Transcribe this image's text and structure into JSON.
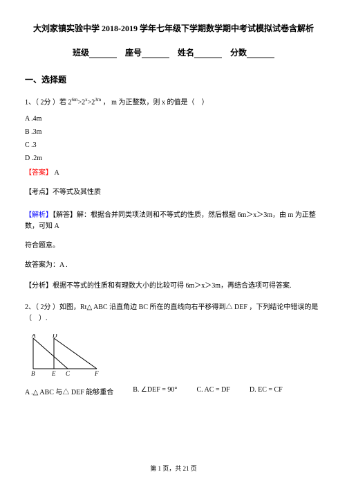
{
  "doc": {
    "title": "大刘家镇实验中学 2018-2019 学年七年级下学期数学期中考试模拟试卷含解析",
    "blanks": {
      "class": "班级",
      "seat": "座号",
      "name": "姓名",
      "score": "分数"
    },
    "section1": "一、选择题",
    "q1": {
      "stem_a": "1、（ 2分 ）若 2",
      "exp1": "6m",
      "stem_b": ">2",
      "exp2": "x",
      "stem_c": ">2",
      "exp3": "3m",
      "stem_d": " ， m 为正整数，则 x 的值是（　）",
      "optA": "A .4m",
      "optB": "B .3m",
      "optC": "C .3",
      "optD": "D .2m",
      "ans_label": "【答案】",
      "ans": " A",
      "kaodian": "【考点】不等式及其性质",
      "jiexi_label": "【解析】",
      "jiexi_body": "【解答】解：根据合并同类项法则和不等式的性质，然后根据 6m＞x＞3m，由 m 为正整数，可知 A",
      "jiexi_cont": "符合题意。",
      "gudaan": "故答案为：A .",
      "fenxi": "【分析】根据不等式的性质和有理数大小的比较可得 6m＞x＞3m，再结合选项可得答案.",
      "q2_stem": "2、（ 2分 ）如图，Rt△ ABC 沿直角边 BC 所在的直线向右平移得到△ DEF ，下列结论中错误的是（　）.",
      "q2_optA": "A .△ ABC 与△ DEF 能够重合",
      "q2_optB": "B. ∠DEF = 90°",
      "q2_optC": "C. AC = DF",
      "q2_optD": "D. EC = CF"
    },
    "triangle": {
      "stroke": "#000000",
      "stroke_width": 1,
      "width": 130,
      "height": 55,
      "A": [
        8,
        6
      ],
      "B": [
        8,
        50
      ],
      "C": [
        58,
        50
      ],
      "D": [
        38,
        6
      ],
      "E": [
        38,
        50
      ],
      "F": [
        100,
        50
      ],
      "label_fontsize": 9,
      "label_style": "italic"
    },
    "footer": {
      "prefix": "第 ",
      "page": "1",
      "mid": " 页，共 ",
      "total": "21",
      "suffix": " 页"
    }
  }
}
